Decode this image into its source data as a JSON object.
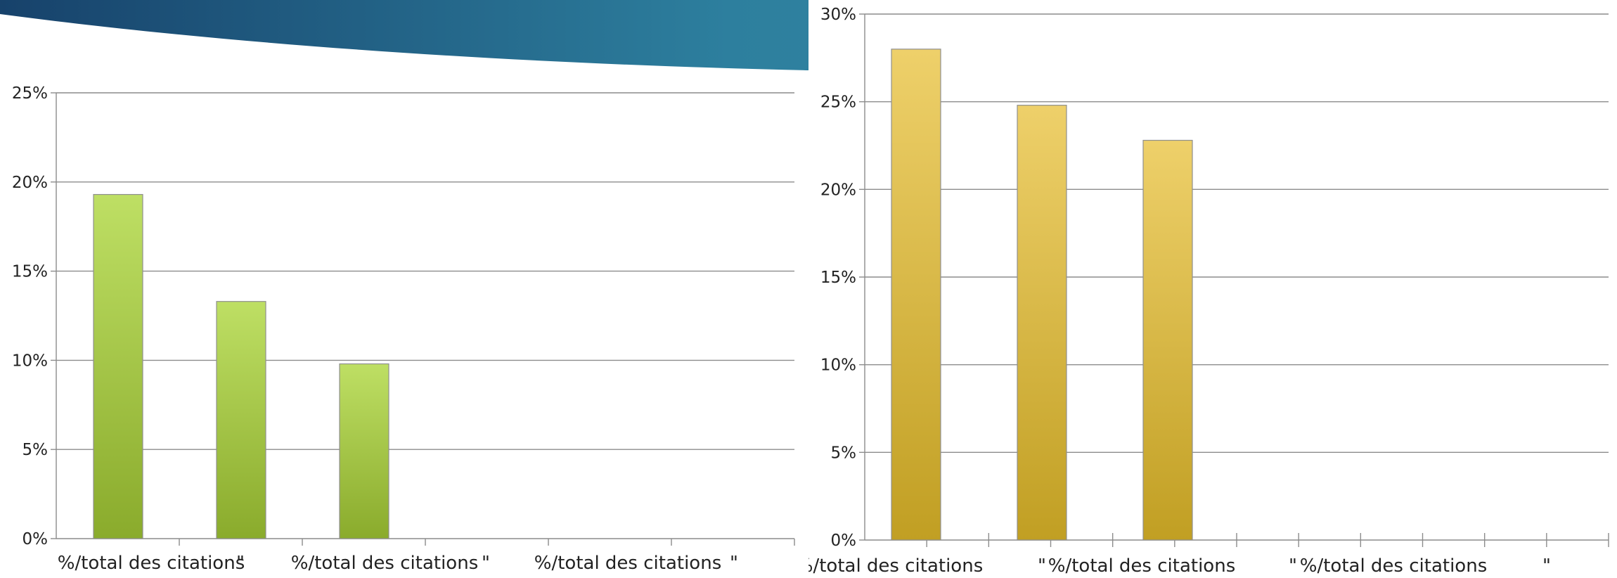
{
  "chart_data": [
    {
      "type": "bar",
      "categories": [
        "%/total des citations",
        "\"",
        "%/total des citations",
        "\"",
        "%/total des citations",
        "\""
      ],
      "values": [
        0.193,
        0.133,
        0.098,
        null,
        null,
        null
      ],
      "ylim": [
        0,
        0.25
      ],
      "yticks": [
        "0%",
        "5%",
        "10%",
        "15%",
        "20%",
        "25%"
      ],
      "grid": true,
      "bar_color_top": "#bedf64",
      "bar_color_bottom": "#8aab2c"
    },
    {
      "type": "bar",
      "categories": [
        "%/total des citations",
        "\"",
        "%/total des citations",
        "\"",
        "%/total des citations",
        "\""
      ],
      "values": [
        0.28,
        0.248,
        0.228,
        null,
        null,
        null
      ],
      "ylim": [
        0,
        0.3
      ],
      "yticks": [
        "0%",
        "5%",
        "10%",
        "15%",
        "20%",
        "25%",
        "30%"
      ],
      "grid": true,
      "bar_color_top": "#eed06a",
      "bar_color_bottom": "#c19f23"
    }
  ],
  "theme": {
    "banner_dark": "#17426b",
    "banner_mid": "#2d7f9e",
    "banner_light": "#3a92a8"
  }
}
